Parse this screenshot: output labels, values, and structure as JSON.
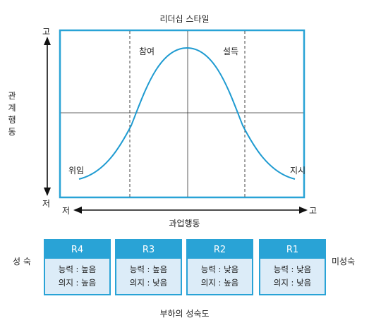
{
  "title": "리더십 스타일",
  "y_axis": {
    "label_chars": [
      "관",
      "계",
      "행",
      "동"
    ],
    "high": "고",
    "low": "저"
  },
  "x_axis": {
    "label": "과업행동",
    "low": "저",
    "high": "고"
  },
  "styles": [
    "참여",
    "설득",
    "위임",
    "지시"
  ],
  "maturity": {
    "left_label": "성 숙",
    "right_label": "미성숙",
    "caption": "부하의 성숙도",
    "levels": [
      {
        "name": "R4",
        "ability": "능력 : 높음",
        "willingness": "의지 : 높음"
      },
      {
        "name": "R3",
        "ability": "능력 : 높음",
        "willingness": "의지 : 낮음"
      },
      {
        "name": "R2",
        "ability": "능력 : 낮음",
        "willingness": "의지 : 높음"
      },
      {
        "name": "R1",
        "ability": "능력 : 낮음",
        "willingness": "의지 : 낮음"
      }
    ]
  },
  "colors": {
    "frame": "#29a3d6",
    "curve": "#1f9bd1",
    "level_header": "#29a3d6",
    "level_body": "#dcecf8"
  }
}
